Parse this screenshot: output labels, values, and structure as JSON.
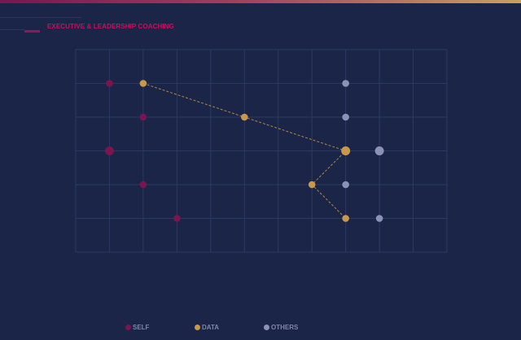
{
  "header": {
    "section_title": "EXECUTIVE & LEADERSHIP COACHING"
  },
  "colors": {
    "background": "#1a2547",
    "self": "#7a1550",
    "data": "#c9984a",
    "others": "#8a93b5",
    "grid": "#2c3a63",
    "title": "#c4125e"
  },
  "chart_data": {
    "type": "scatter",
    "title": "",
    "xlabel": "",
    "ylabel": "",
    "xlim": [
      0,
      11
    ],
    "ylim": [
      0,
      6
    ],
    "grid": true,
    "legend_position": "bottom-center",
    "series": [
      {
        "name": "SELF",
        "color": "#7a1550",
        "points": [
          [
            1,
            5
          ],
          [
            2,
            4
          ],
          [
            1,
            3
          ],
          [
            2,
            2
          ],
          [
            3,
            1
          ]
        ],
        "connected": false
      },
      {
        "name": "DATA",
        "color": "#c9984a",
        "points": [
          [
            2,
            5
          ],
          [
            5,
            4
          ],
          [
            8,
            3
          ],
          [
            7,
            2
          ],
          [
            8,
            1
          ]
        ],
        "connected": true
      },
      {
        "name": "OTHERS",
        "color": "#8a93b5",
        "points": [
          [
            8,
            5
          ],
          [
            8,
            4
          ],
          [
            9,
            3
          ],
          [
            8,
            2
          ],
          [
            9,
            1
          ]
        ],
        "connected": false
      }
    ]
  },
  "legend": {
    "items": [
      {
        "label": "SELF",
        "color": "#7a1550"
      },
      {
        "label": "DATA",
        "color": "#c9984a"
      },
      {
        "label": "OTHERS",
        "color": "#8a93b5"
      }
    ]
  }
}
